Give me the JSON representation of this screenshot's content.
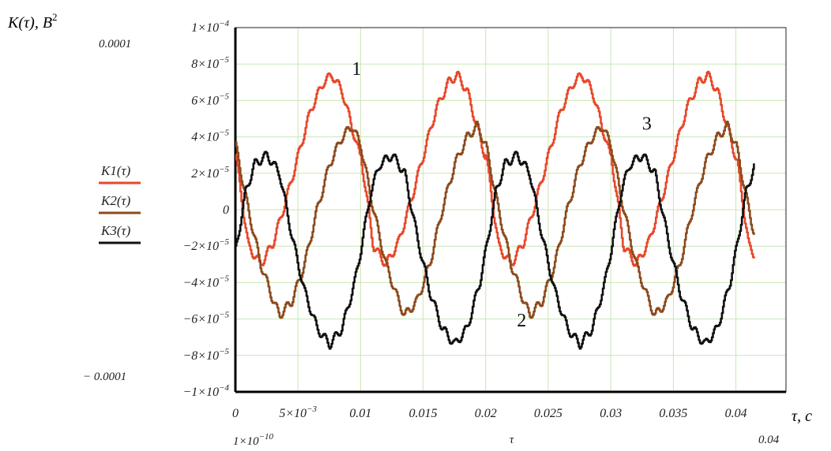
{
  "chart_data": {
    "type": "line",
    "ylabel": "K(τ), В",
    "ylabel_sup": "2",
    "xlabel": "τ, с",
    "xlim": [
      0,
      0.044
    ],
    "ylim": [
      -0.0001,
      0.0001
    ],
    "grid": true,
    "legend_position": "left",
    "x_ticks": [
      {
        "value": 0,
        "label": "0"
      },
      {
        "value": 0.005,
        "label": "5×10",
        "exp": "−3"
      },
      {
        "value": 0.01,
        "label": "0.01"
      },
      {
        "value": 0.015,
        "label": "0.015"
      },
      {
        "value": 0.02,
        "label": "0.02"
      },
      {
        "value": 0.025,
        "label": "0.025"
      },
      {
        "value": 0.03,
        "label": "0.03"
      },
      {
        "value": 0.035,
        "label": "0.035"
      },
      {
        "value": 0.04,
        "label": "0.04"
      }
    ],
    "y_ticks": [
      {
        "value": 0.0001,
        "label": "1×10",
        "exp": "−4"
      },
      {
        "value": 8e-05,
        "label": "8×10",
        "exp": "−5"
      },
      {
        "value": 6e-05,
        "label": "6×10",
        "exp": "−5"
      },
      {
        "value": 4e-05,
        "label": "4×10",
        "exp": "−5"
      },
      {
        "value": 2e-05,
        "label": "2×10",
        "exp": "−5"
      },
      {
        "value": 0,
        "label": "0"
      },
      {
        "value": -2e-05,
        "label": "−2×10",
        "exp": "−5"
      },
      {
        "value": -4e-05,
        "label": "−4×10",
        "exp": "−5"
      },
      {
        "value": -6e-05,
        "label": "−6×10",
        "exp": "−5"
      },
      {
        "value": -8e-05,
        "label": "−8×10",
        "exp": "−5"
      },
      {
        "value": -0.0001,
        "label": "−1×10",
        "exp": "−4"
      }
    ],
    "corner_labels": {
      "y_max": "0.0001",
      "y_min": "− 0.0001",
      "x_min": "1×10",
      "x_min_exp": "−10",
      "x_var": "τ",
      "x_max": "0.04"
    },
    "series": [
      {
        "name": "K1(τ)",
        "color": "#e8472a",
        "period": 0.01,
        "points": [
          [
            0.0,
            3e-05
          ],
          [
            0.001,
            -2e-05
          ],
          [
            0.002,
            -3e-05
          ],
          [
            0.003,
            -1.8e-05
          ],
          [
            0.004,
            5e-06
          ],
          [
            0.005,
            3e-05
          ],
          [
            0.006,
            5.5e-05
          ],
          [
            0.007,
            7e-05
          ],
          [
            0.0077,
            7.4e-05
          ],
          [
            0.0085,
            6.5e-05
          ],
          [
            0.0095,
            4e-05
          ],
          [
            0.0105,
            1.5e-05
          ]
        ],
        "end": 0.0415
      },
      {
        "name": "K2(τ)",
        "color": "#8c4a1c",
        "period": 0.01,
        "points": [
          [
            0.0,
            3.5e-05
          ],
          [
            0.001,
            0.0
          ],
          [
            0.002,
            -3e-05
          ],
          [
            0.003,
            -5e-05
          ],
          [
            0.0035,
            -5.8e-05
          ],
          [
            0.0045,
            -5e-05
          ],
          [
            0.0055,
            -3e-05
          ],
          [
            0.0065,
            0.0
          ],
          [
            0.0075,
            2.5e-05
          ],
          [
            0.0085,
            4e-05
          ],
          [
            0.0093,
            4.6e-05
          ],
          [
            0.01,
            3.5e-05
          ]
        ],
        "end": 0.0415
      },
      {
        "name": "K3(τ)",
        "color": "#111111",
        "period": 0.01,
        "points": [
          [
            0.0,
            -2.2e-05
          ],
          [
            0.0008,
            1e-05
          ],
          [
            0.0015,
            2.5e-05
          ],
          [
            0.0025,
            3e-05
          ],
          [
            0.0035,
            2e-05
          ],
          [
            0.0045,
            -1.5e-05
          ],
          [
            0.0055,
            -4.5e-05
          ],
          [
            0.0065,
            -6.5e-05
          ],
          [
            0.0075,
            -7.4e-05
          ],
          [
            0.0085,
            -6.5e-05
          ],
          [
            0.0095,
            -4e-05
          ],
          [
            0.01,
            -2.2e-05
          ]
        ],
        "end": 0.0415
      }
    ],
    "annotations": [
      {
        "text": "1",
        "x": 0.0093,
        "y": 7.4e-05
      },
      {
        "text": "2",
        "x": 0.0225,
        "y": -6.4e-05
      },
      {
        "text": "3",
        "x": 0.0325,
        "y": 4.4e-05
      }
    ]
  }
}
